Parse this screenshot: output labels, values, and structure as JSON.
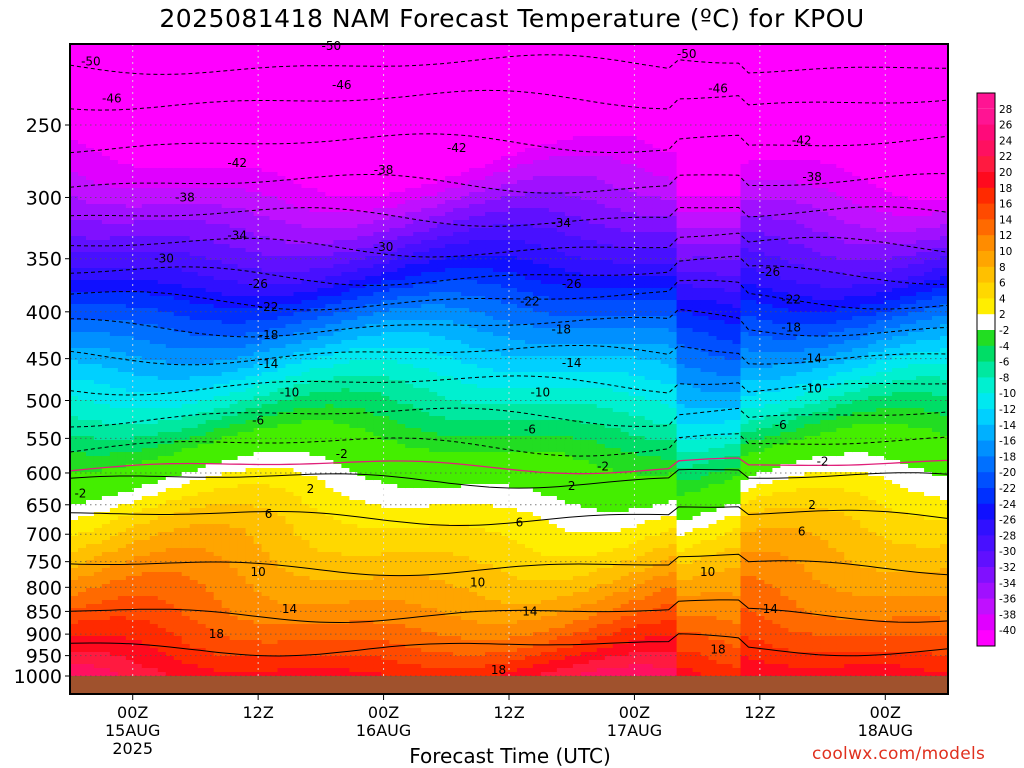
{
  "header": {
    "title": "2025081418 NAM Forecast Temperature (ºC) for KPOU",
    "xlabel": "Forecast Time (UTC)",
    "credit": "coolwx.com/models"
  },
  "colors": {
    "frame": "#000000",
    "ground": "#a0522d",
    "zero_line": "#e0207a",
    "grid": "#9a9a9a"
  },
  "chart_data": {
    "type": "heatmap",
    "title": "2025081418 NAM Forecast Temperature (ºC) for KPOU",
    "xlabel": "Forecast Time (UTC)",
    "ylabel": "",
    "y_scale": "log pressure (hPa), inverted",
    "ylim": [
      1000,
      200
    ],
    "xlim_hours_label": [
      "2025-08-14 18Z",
      "2025-08-18 06Z"
    ],
    "y_ticks": [
      250,
      300,
      350,
      400,
      450,
      500,
      550,
      600,
      650,
      700,
      750,
      800,
      850,
      900,
      950,
      1000
    ],
    "x_ticks": [
      {
        "time": "00Z",
        "date": "15AUG",
        "year": "2025"
      },
      {
        "time": "12Z",
        "date": "",
        "year": ""
      },
      {
        "time": "00Z",
        "date": "16AUG",
        "year": ""
      },
      {
        "time": "12Z",
        "date": "",
        "year": ""
      },
      {
        "time": "00Z",
        "date": "17AUG",
        "year": ""
      },
      {
        "time": "12Z",
        "date": "",
        "year": ""
      },
      {
        "time": "00Z",
        "date": "18AUG",
        "year": ""
      }
    ],
    "x_tick_hours": [
      6,
      18,
      30,
      42,
      54,
      66,
      78
    ],
    "x_range_hours": [
      0,
      84
    ],
    "grid": true,
    "colorbar": {
      "placement": "right",
      "levels": [
        28,
        26,
        24,
        22,
        20,
        18,
        16,
        14,
        12,
        10,
        8,
        6,
        4,
        2,
        -2,
        -4,
        -6,
        -8,
        -10,
        -12,
        -14,
        -16,
        -18,
        -20,
        -22,
        -24,
        -26,
        -28,
        -30,
        -32,
        -34,
        -36,
        -38,
        -40
      ]
    },
    "isotherms": [
      {
        "value": -50,
        "pressure": 215
      },
      {
        "value": -46,
        "pressure": 235
      },
      {
        "value": -42,
        "pressure": 262
      },
      {
        "value": -38,
        "pressure": 290
      },
      {
        "value": -34,
        "pressure": 315
      },
      {
        "value": -30,
        "pressure": 340
      },
      {
        "value": -26,
        "pressure": 365
      },
      {
        "value": -22,
        "pressure": 388
      },
      {
        "value": -18,
        "pressure": 415
      },
      {
        "value": -14,
        "pressure": 445
      },
      {
        "value": -10,
        "pressure": 480
      },
      {
        "value": -6,
        "pressure": 520
      },
      {
        "value": -2,
        "pressure": 560
      },
      {
        "value": 2,
        "pressure": 610
      },
      {
        "value": 6,
        "pressure": 670
      },
      {
        "value": 10,
        "pressure": 760
      },
      {
        "value": 14,
        "pressure": 855
      },
      {
        "value": 18,
        "pressure": 930
      }
    ],
    "contour_labels": [
      {
        "text": "-50",
        "hour": 2,
        "pressure": 213
      },
      {
        "text": "-50",
        "hour": 25,
        "pressure": 205
      },
      {
        "text": "-50",
        "hour": 59,
        "pressure": 209
      },
      {
        "text": "-46",
        "hour": 4,
        "pressure": 234
      },
      {
        "text": "-46",
        "hour": 26,
        "pressure": 226
      },
      {
        "text": "-46",
        "hour": 62,
        "pressure": 228
      },
      {
        "text": "-42",
        "hour": 16,
        "pressure": 275
      },
      {
        "text": "-42",
        "hour": 37,
        "pressure": 265
      },
      {
        "text": "-42",
        "hour": 70,
        "pressure": 260
      },
      {
        "text": "-38",
        "hour": 11,
        "pressure": 300
      },
      {
        "text": "-38",
        "hour": 30,
        "pressure": 280
      },
      {
        "text": "-38",
        "hour": 71,
        "pressure": 285
      },
      {
        "text": "-34",
        "hour": 16,
        "pressure": 330
      },
      {
        "text": "-34",
        "hour": 47,
        "pressure": 320
      },
      {
        "text": "-30",
        "hour": 9,
        "pressure": 350
      },
      {
        "text": "-30",
        "hour": 30,
        "pressure": 340
      },
      {
        "text": "-26",
        "hour": 18,
        "pressure": 373
      },
      {
        "text": "-26",
        "hour": 48,
        "pressure": 373
      },
      {
        "text": "-26",
        "hour": 67,
        "pressure": 362
      },
      {
        "text": "-22",
        "hour": 19,
        "pressure": 395
      },
      {
        "text": "-22",
        "hour": 44,
        "pressure": 390
      },
      {
        "text": "-22",
        "hour": 69,
        "pressure": 388
      },
      {
        "text": "-18",
        "hour": 19,
        "pressure": 424
      },
      {
        "text": "-18",
        "hour": 47,
        "pressure": 418
      },
      {
        "text": "-18",
        "hour": 69,
        "pressure": 416
      },
      {
        "text": "-14",
        "hour": 19,
        "pressure": 456
      },
      {
        "text": "-14",
        "hour": 48,
        "pressure": 455
      },
      {
        "text": "-14",
        "hour": 71,
        "pressure": 450
      },
      {
        "text": "-10",
        "hour": 21,
        "pressure": 490
      },
      {
        "text": "-10",
        "hour": 45,
        "pressure": 490
      },
      {
        "text": "-10",
        "hour": 71,
        "pressure": 485
      },
      {
        "text": "-6",
        "hour": 18,
        "pressure": 526
      },
      {
        "text": "-6",
        "hour": 44,
        "pressure": 538
      },
      {
        "text": "-6",
        "hour": 68,
        "pressure": 532
      },
      {
        "text": "-2",
        "hour": 26,
        "pressure": 572
      },
      {
        "text": "-2",
        "hour": 51,
        "pressure": 590
      },
      {
        "text": "-2",
        "hour": 72,
        "pressure": 583
      },
      {
        "text": "-2",
        "hour": 1,
        "pressure": 632
      },
      {
        "text": "2",
        "hour": 23,
        "pressure": 625
      },
      {
        "text": "2",
        "hour": 48,
        "pressure": 620
      },
      {
        "text": "2",
        "hour": 71,
        "pressure": 650
      },
      {
        "text": "6",
        "hour": 19,
        "pressure": 665
      },
      {
        "text": "6",
        "hour": 43,
        "pressure": 680
      },
      {
        "text": "6",
        "hour": 70,
        "pressure": 695
      },
      {
        "text": "10",
        "hour": 18,
        "pressure": 770
      },
      {
        "text": "10",
        "hour": 39,
        "pressure": 790
      },
      {
        "text": "10",
        "hour": 61,
        "pressure": 770
      },
      {
        "text": "14",
        "hour": 21,
        "pressure": 845
      },
      {
        "text": "14",
        "hour": 44,
        "pressure": 850
      },
      {
        "text": "14",
        "hour": 67,
        "pressure": 845
      },
      {
        "text": "18",
        "hour": 14,
        "pressure": 900
      },
      {
        "text": "18",
        "hour": 41,
        "pressure": 985
      },
      {
        "text": "18",
        "hour": 62,
        "pressure": 935
      }
    ]
  }
}
